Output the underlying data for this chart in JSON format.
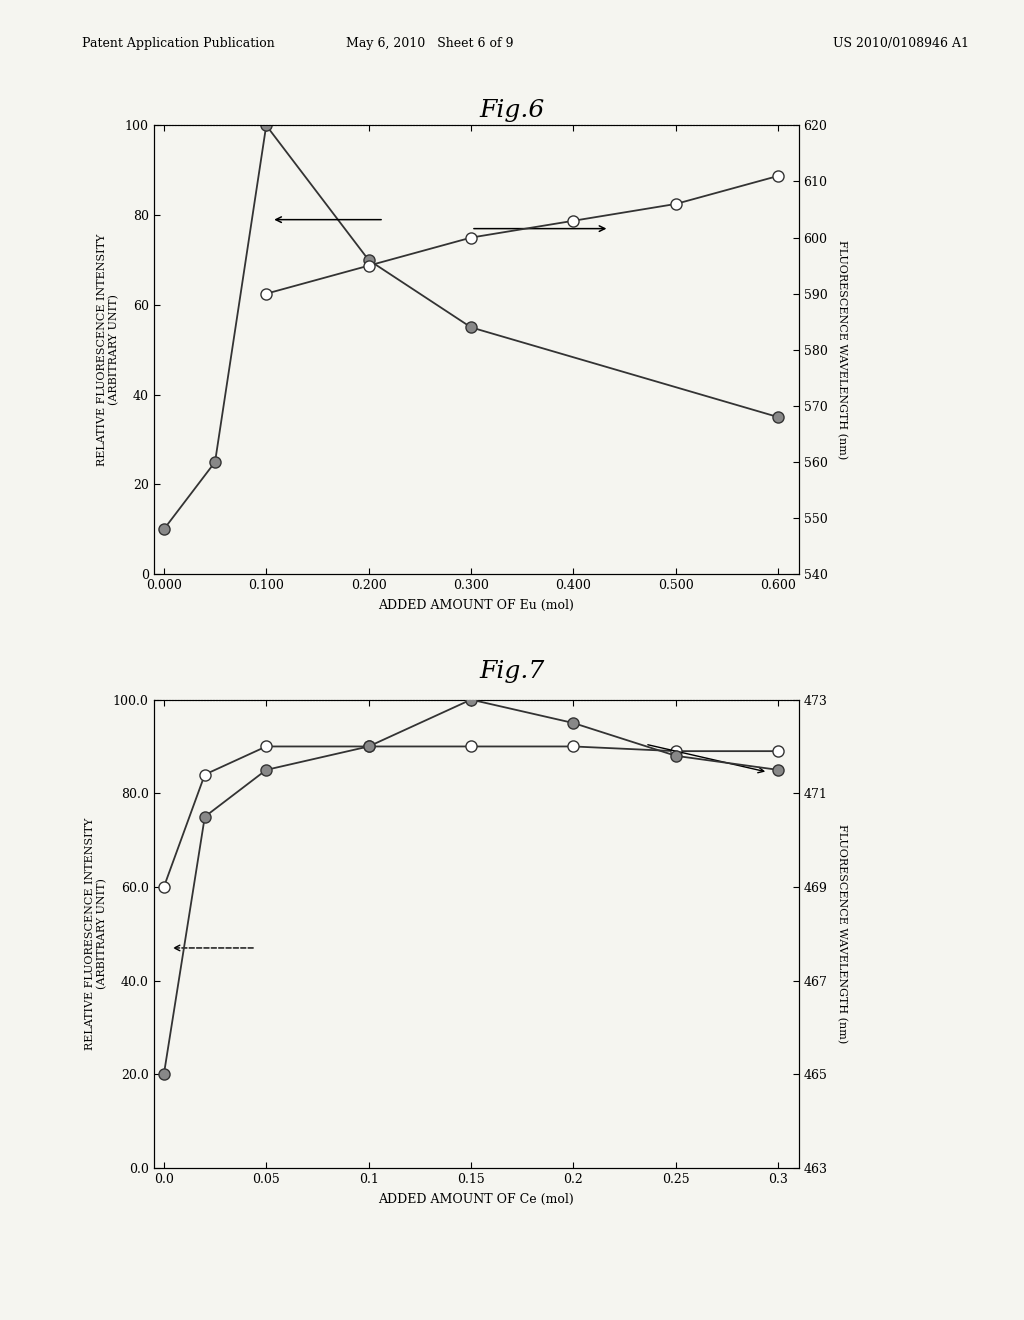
{
  "fig6": {
    "title": "Fig.6",
    "xlabel": "ADDED AMOUNT OF Eu (mol)",
    "ylabel_left": "RELATIVE FLUORESCENCE INTENSITY\n(ARBITRARY UNIT)",
    "ylabel_right": "FLUORESCENCE WAVELENGTH (nm)",
    "intensity_x": [
      0.0,
      0.05,
      0.1,
      0.2,
      0.3,
      0.6
    ],
    "intensity_y": [
      10,
      25,
      100,
      70,
      55,
      35
    ],
    "wavelength_x": [
      0.1,
      0.2,
      0.3,
      0.4,
      0.5,
      0.6
    ],
    "wavelength_y": [
      590,
      595,
      600,
      603,
      606,
      611
    ],
    "xlim": [
      -0.01,
      0.62
    ],
    "ylim_left": [
      0,
      100
    ],
    "ylim_right": [
      540,
      620
    ],
    "xticks": [
      0.0,
      0.1,
      0.2,
      0.3,
      0.4,
      0.5,
      0.6
    ],
    "yticks_left": [
      0,
      20,
      40,
      60,
      80,
      100
    ],
    "yticks_right": [
      540,
      550,
      560,
      570,
      580,
      590,
      600,
      610,
      620
    ]
  },
  "fig7": {
    "title": "Fig.7",
    "xlabel": "ADDED AMOUNT OF Ce (mol)",
    "ylabel_left": "RELATIVE FLUORESCENCE INTENSITY\n(ARBITRARY UNIT)",
    "ylabel_right": "FLUORESCENCE WAVELENGTH (nm)",
    "intensity_x": [
      0.0,
      0.02,
      0.05,
      0.1,
      0.15,
      0.2,
      0.25,
      0.3
    ],
    "intensity_y": [
      60.0,
      84.0,
      90.0,
      90.0,
      90.0,
      90.0,
      89.0,
      89.0
    ],
    "wavelength_x": [
      0.0,
      0.02,
      0.05,
      0.1,
      0.15,
      0.2,
      0.25,
      0.3
    ],
    "wavelength_y": [
      465.0,
      470.5,
      471.5,
      472.0,
      473.0,
      472.5,
      471.8,
      471.5
    ],
    "xlim": [
      -0.005,
      0.31
    ],
    "ylim_left": [
      0.0,
      100.0
    ],
    "ylim_right": [
      463.0,
      473.0
    ],
    "xticks": [
      0.0,
      0.05,
      0.1,
      0.15,
      0.2,
      0.25,
      0.3
    ],
    "yticks_left": [
      0.0,
      20.0,
      40.0,
      60.0,
      80.0,
      100.0
    ],
    "yticks_right": [
      463,
      465,
      467,
      469,
      471,
      473
    ]
  },
  "background_color": "#f5f5f0",
  "header_left": "Patent Application Publication",
  "header_mid": "May 6, 2010   Sheet 6 of 9",
  "header_right": "US 2010/0108946 A1"
}
